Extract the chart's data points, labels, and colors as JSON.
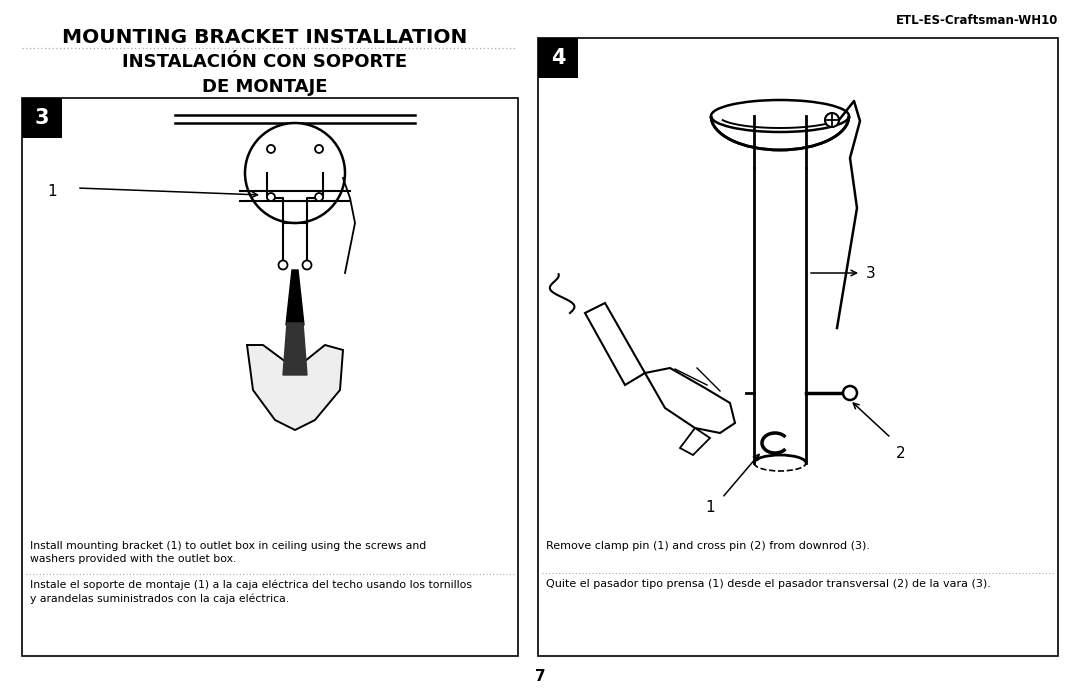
{
  "bg_color": "#ffffff",
  "page_num": "7",
  "header_text": "ETL-ES-Craftsman-WH10",
  "title_line1": "MOUNTING BRACKET INSTALLATION",
  "title_line2": "INSTALACIÓN CON SOPORTE",
  "title_line3": "DE MONTAJE",
  "step3_num": "3",
  "step4_num": "4",
  "step3_caption_en": "Install mounting bracket (1) to outlet box in ceiling using the screws and\nwashers provided with the outlet box.",
  "step3_caption_es": "Instale el soporte de montaje (1) a la caja eléctrica del techo usando los tornillos\ny arandelas suministrados con la caja eléctrica.",
  "step4_caption_en": "Remove clamp pin (1) and cross pin (2) from downrod (3).",
  "step4_caption_es": "Quite el pasador tipo prensa (1) desde el pasador transversal (2) de la vara (3)."
}
